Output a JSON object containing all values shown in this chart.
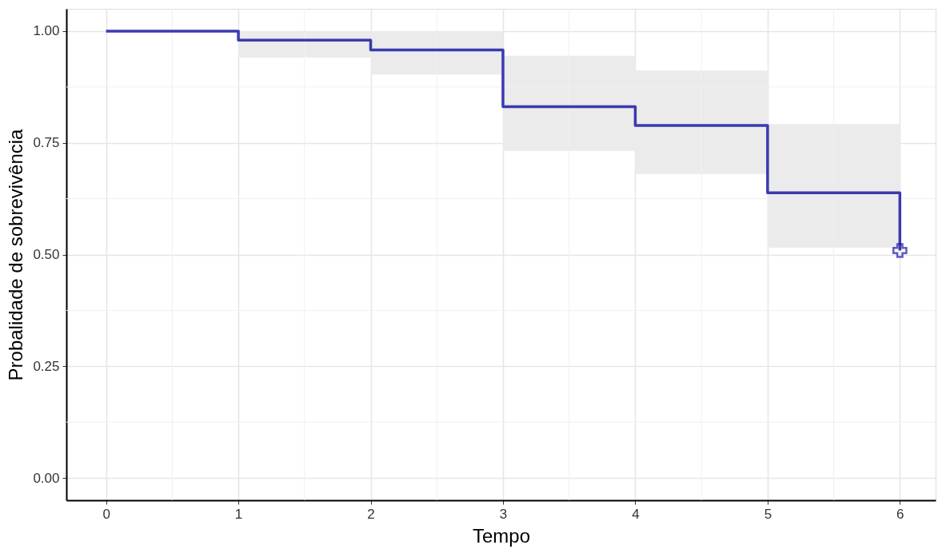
{
  "chart_data": {
    "type": "step",
    "xlabel": "Tempo",
    "ylabel": "Probalidade de sobrevivência",
    "xlim": [
      -0.3,
      6.27
    ],
    "ylim": [
      -0.05,
      1.05
    ],
    "xticks": [
      0,
      {
        "value": 0.5,
        "label": null
      },
      1,
      {
        "value": 1.5,
        "label": null
      },
      2,
      {
        "value": 2.5,
        "label": null
      },
      3,
      {
        "value": 3.5,
        "label": null
      },
      4,
      {
        "value": 4.5,
        "label": null
      },
      5,
      {
        "value": 5.5,
        "label": null
      },
      6
    ],
    "yticks": [
      {
        "value": 0,
        "label": "0.00"
      },
      {
        "value": 0.125,
        "label": null
      },
      {
        "value": 0.25,
        "label": "0.25"
      },
      {
        "value": 0.375,
        "label": null
      },
      {
        "value": 0.5,
        "label": "0.50"
      },
      {
        "value": 0.625,
        "label": null
      },
      {
        "value": 0.75,
        "label": "0.75"
      },
      {
        "value": 0.875,
        "label": null
      },
      {
        "value": 1,
        "label": "1.00"
      }
    ],
    "grid": true,
    "series": [
      {
        "color": "#3a3ab0",
        "x": [
          0,
          1,
          2,
          3,
          4,
          5,
          6
        ],
        "values": [
          1.0,
          0.98,
          0.958,
          0.831,
          0.789,
          0.638,
          0.509
        ],
        "lower": [
          1.0,
          0.941,
          0.903,
          0.732,
          0.68,
          0.515,
          0.515
        ],
        "upper": [
          1.0,
          1.0,
          1.0,
          0.945,
          0.912,
          0.792,
          0.792
        ]
      },
      {
        "type": "scatter",
        "color": "#1a1aa6",
        "marker": "cross",
        "x": [
          6
        ],
        "values": [
          0.509
        ]
      }
    ]
  }
}
